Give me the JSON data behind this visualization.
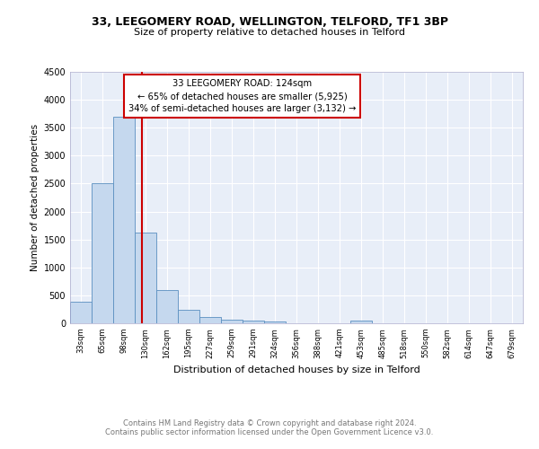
{
  "title": "33, LEEGOMERY ROAD, WELLINGTON, TELFORD, TF1 3BP",
  "subtitle": "Size of property relative to detached houses in Telford",
  "xlabel": "Distribution of detached houses by size in Telford",
  "ylabel": "Number of detached properties",
  "categories": [
    "33sqm",
    "65sqm",
    "98sqm",
    "130sqm",
    "162sqm",
    "195sqm",
    "227sqm",
    "259sqm",
    "291sqm",
    "324sqm",
    "356sqm",
    "388sqm",
    "421sqm",
    "453sqm",
    "485sqm",
    "518sqm",
    "550sqm",
    "582sqm",
    "614sqm",
    "647sqm",
    "679sqm"
  ],
  "values": [
    380,
    2500,
    3700,
    1625,
    600,
    240,
    110,
    70,
    50,
    40,
    0,
    0,
    0,
    50,
    0,
    0,
    0,
    0,
    0,
    0,
    0
  ],
  "property_bin_index": 2.85,
  "annotation_line1": "33 LEEGOMERY ROAD: 124sqm",
  "annotation_line2": "← 65% of detached houses are smaller (5,925)",
  "annotation_line3": "34% of semi-detached houses are larger (3,132) →",
  "bar_color": "#c5d8ee",
  "bar_edge_color": "#5a8fc0",
  "vline_color": "#cc0000",
  "annotation_box_edge": "#cc0000",
  "ylim": [
    0,
    4500
  ],
  "yticks": [
    0,
    500,
    1000,
    1500,
    2000,
    2500,
    3000,
    3500,
    4000,
    4500
  ],
  "footnote1": "Contains HM Land Registry data © Crown copyright and database right 2024.",
  "footnote2": "Contains public sector information licensed under the Open Government Licence v3.0.",
  "bg_color": "#e8eef8"
}
